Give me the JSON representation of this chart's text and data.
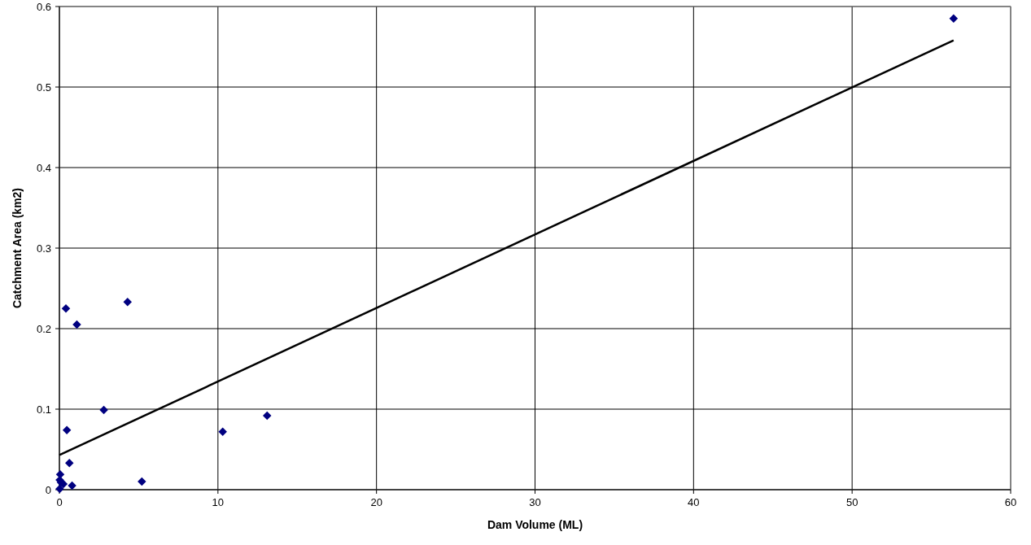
{
  "chart_data": {
    "type": "scatter",
    "xlabel": "Dam Volume (ML)",
    "ylabel": "Catchment Area (km2)",
    "xlim": [
      0,
      60
    ],
    "xticks": [
      0,
      10,
      20,
      30,
      40,
      50,
      60
    ],
    "ylim": [
      0,
      0.6
    ],
    "yticks": [
      0,
      0.1,
      0.2,
      0.3,
      0.4,
      0.5,
      0.6
    ],
    "grid": true,
    "marker": "diamond",
    "series": [
      {
        "color": "#000080",
        "x": [
          56.4,
          0.41,
          4.3,
          1.1,
          2.8,
          0.47,
          10.3,
          13.1,
          0.63,
          5.2,
          0.8,
          0.05,
          0.02,
          0.25,
          0.02,
          0.1
        ],
        "values": [
          0.585,
          0.225,
          0.233,
          0.205,
          0.099,
          0.074,
          0.072,
          0.092,
          0.033,
          0.01,
          0.005,
          0.019,
          0.012,
          0.007,
          0.001,
          0.009
        ]
      },
      {
        "type": "line",
        "color": "#000000",
        "marker": "none",
        "line_style": "solid",
        "x": [
          0,
          56.4
        ],
        "values": [
          0.043,
          0.558
        ]
      }
    ]
  }
}
